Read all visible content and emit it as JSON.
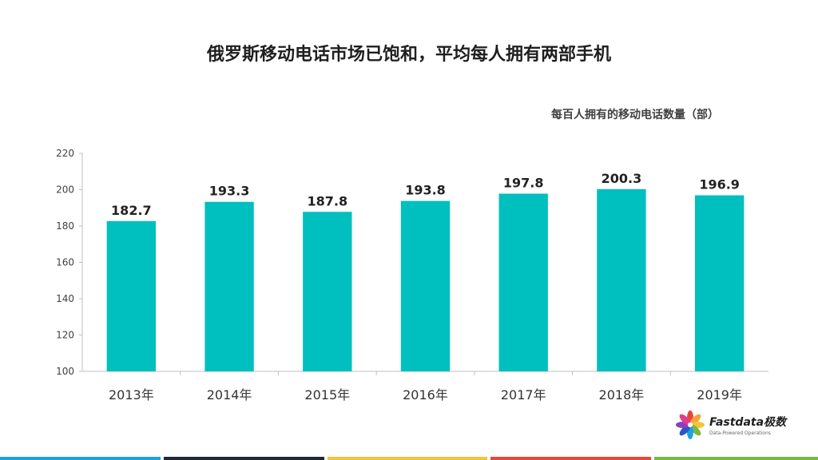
{
  "title": "俄罗斯移动电话市场已饱和，平均每人拥有两部手机",
  "unit_label": "每百人拥有的移动电话数量（部）",
  "chart_data": {
    "type": "bar",
    "categories": [
      "2013年",
      "2014年",
      "2015年",
      "2016年",
      "2017年",
      "2018年",
      "2019年"
    ],
    "values": [
      182.7,
      193.3,
      187.8,
      193.8,
      197.8,
      200.3,
      196.9
    ],
    "value_labels": [
      "182.7",
      "193.3",
      "187.8",
      "193.8",
      "197.8",
      "200.3",
      "196.9"
    ],
    "ylim": [
      100,
      220
    ],
    "yticks": [
      100,
      120,
      140,
      160,
      180,
      200,
      220
    ],
    "grid": false,
    "legend": "none",
    "bar_color": "#00BFBF"
  },
  "logo": {
    "name": "Fastdata极数",
    "tagline": "Data-Powered Operations"
  },
  "footer_colors": [
    "#1aa3dc",
    "#1f2a36",
    "#f4c53a",
    "#e8453c",
    "#78b843"
  ]
}
